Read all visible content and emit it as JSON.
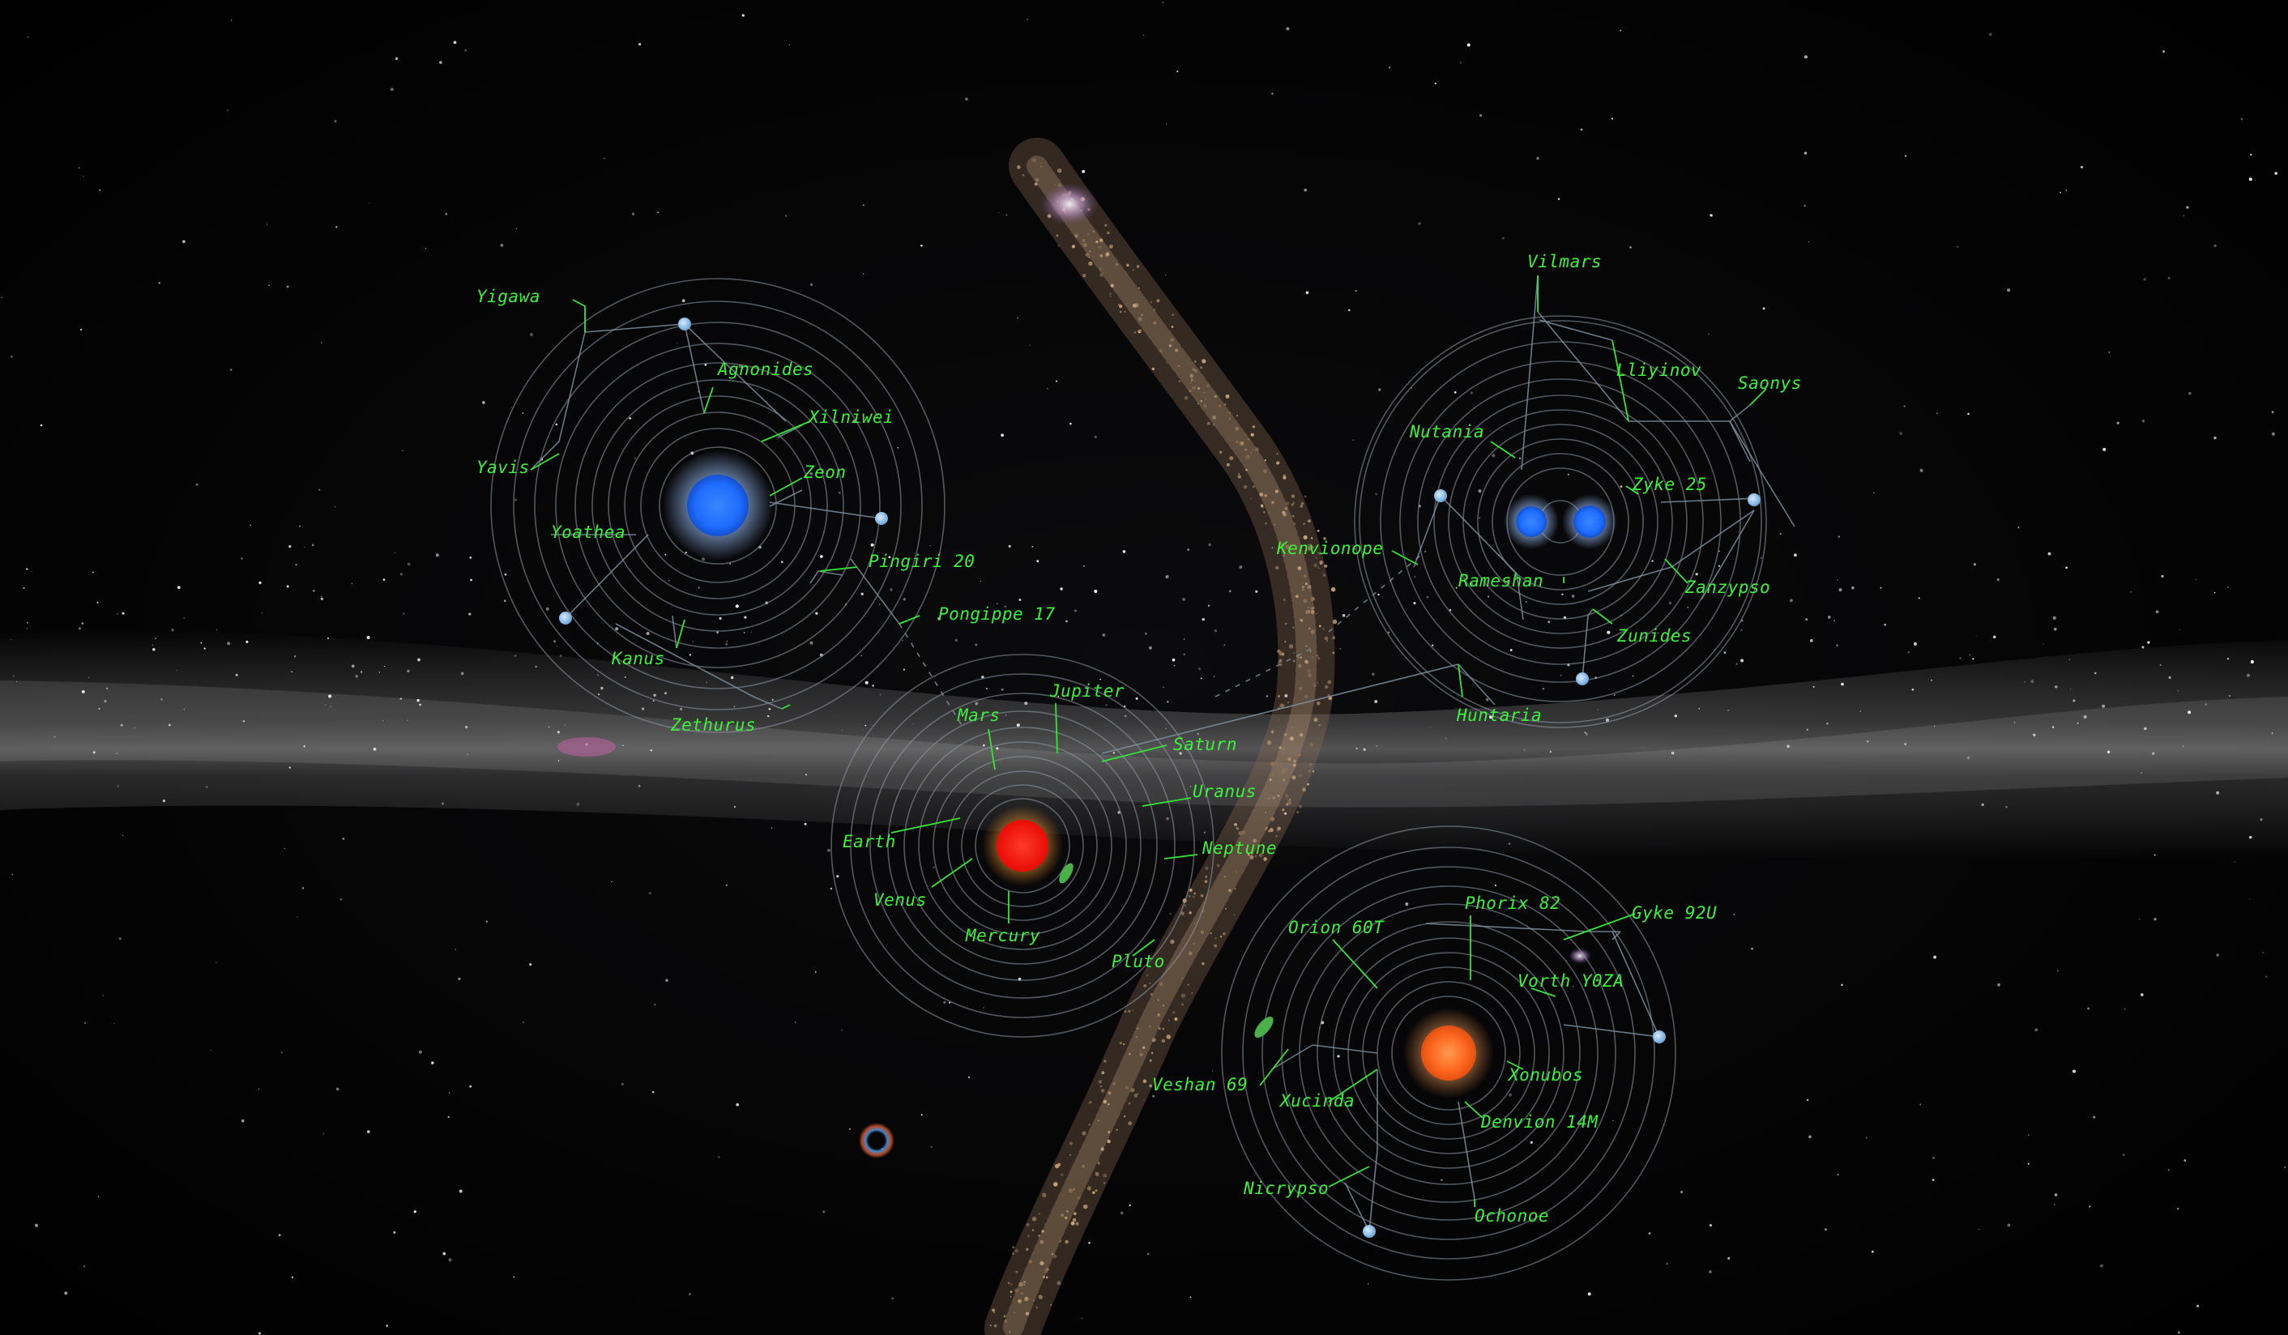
{
  "colors": {
    "label": "#3cf03c",
    "orbit": "#8f9aa6",
    "blue_star": "#1f6dff",
    "red_star": "#ff1a10",
    "orange_star": "#ff6a22",
    "moon": "#7fb7e6"
  },
  "systems": [
    {
      "id": "blue-giant-system",
      "star_icon": "blue-star-icon",
      "star_color": "#1f6dff",
      "planets": [
        "Yigawa",
        "Agnonides",
        "Xilniwei",
        "Zeon",
        "Yavis",
        "Yoathea",
        "Pingiri 20",
        "Pongippe 17",
        "Kanus",
        "Zethurus"
      ]
    },
    {
      "id": "binary-blue-system",
      "star_icon": "binary-blue-stars-icon",
      "star_color": "#1f6dff",
      "planets": [
        "Vilmars",
        "Lliyinov",
        "Saonys",
        "Nutania",
        "Zyke 25",
        "Kenvionope",
        "Rameshan",
        "Zanzypso",
        "Zunides",
        "Huntaria"
      ]
    },
    {
      "id": "sol-system",
      "star_icon": "red-star-icon",
      "star_color": "#ff1a10",
      "planets": [
        "Jupiter",
        "Mars",
        "Saturn",
        "Uranus",
        "Earth",
        "Neptune",
        "Venus",
        "Mercury",
        "Pluto"
      ]
    },
    {
      "id": "orange-star-system",
      "star_icon": "orange-star-icon",
      "star_color": "#ff6a22",
      "planets": [
        "Phorix 82",
        "Orion 60T",
        "Gyke 92U",
        "Vorth Y0ZA",
        "Veshan 69",
        "Xucinda",
        "Xonubos",
        "Denvion 14M",
        "Nicrypso",
        "Ochonoe"
      ]
    }
  ]
}
